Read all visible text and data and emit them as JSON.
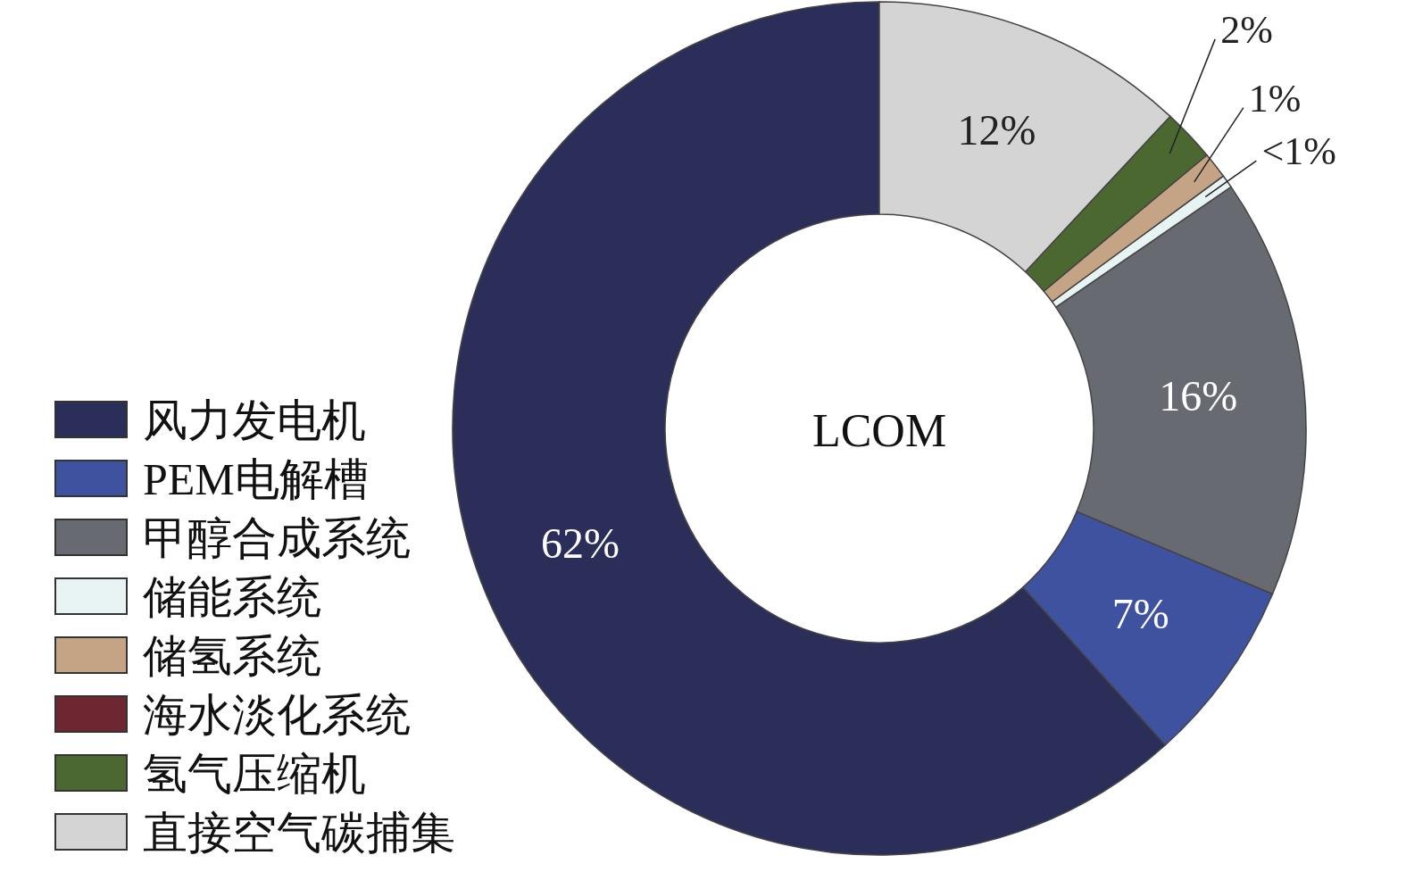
{
  "chart_data": {
    "type": "donut",
    "title": "LCOM",
    "categories": [
      "风力发电机",
      "PEM电解槽",
      "甲醇合成系统",
      "储能系统",
      "储氢系统",
      "海水淡化系统",
      "氢气压缩机",
      "直接空气碳捕集"
    ],
    "values": [
      62,
      7,
      16,
      0.5,
      1,
      0,
      2,
      12
    ],
    "value_labels": [
      "62%",
      "7%",
      "16%",
      "<1%",
      "1%",
      null,
      "2%",
      "12%"
    ],
    "colors": [
      "#2c2e5a",
      "#3f52a0",
      "#686a72",
      "#e8f4f4",
      "#c4a484",
      "#6e2630",
      "#4a6830",
      "#d4d4d4"
    ],
    "legend": "left"
  }
}
